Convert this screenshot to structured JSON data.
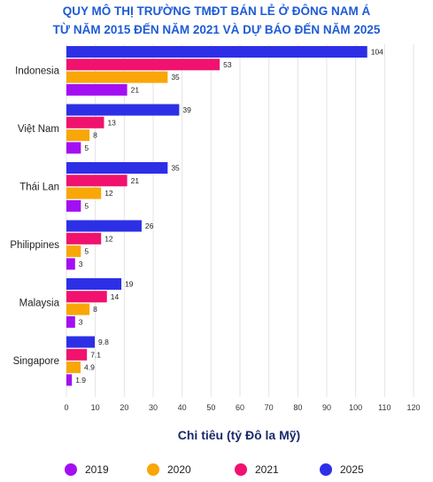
{
  "chart_data": {
    "type": "bar",
    "orientation": "horizontal",
    "title_lines": [
      "QUY MÔ THỊ TRƯỜNG TMĐT BÁN LẺ Ở ĐÔNG NAM Á",
      "TỪ NĂM 2015 ĐẾN NĂM 2021 VÀ DỰ BÁO ĐẾN NĂM 2025"
    ],
    "xlabel": "Chi tiêu (tỷ Đô la Mỹ)",
    "ylabel": "",
    "xlim": [
      0,
      120
    ],
    "x_ticks": [
      0,
      10,
      20,
      30,
      40,
      50,
      60,
      70,
      80,
      90,
      100,
      110,
      120
    ],
    "grid": true,
    "legend_position": "bottom",
    "categories": [
      "Indonesia",
      "Việt Nam",
      "Thái Lan",
      "Philippines",
      "Malaysia",
      "Singapore"
    ],
    "series": [
      {
        "name": "2025",
        "color": "#2d2fe6",
        "values": [
          104,
          39,
          35,
          26,
          19,
          9.8
        ],
        "labels": [
          "104",
          "39",
          "35",
          "26",
          "19",
          "9.8"
        ]
      },
      {
        "name": "2021",
        "color": "#f0126e",
        "values": [
          53,
          13,
          21,
          12,
          14,
          7.1
        ],
        "labels": [
          "53",
          "13",
          "21",
          "12",
          "14",
          "7.1"
        ]
      },
      {
        "name": "2020",
        "color": "#f9a607",
        "values": [
          35,
          8,
          12,
          5,
          8,
          4.9
        ],
        "labels": [
          "35",
          "8",
          "12",
          "5",
          "8",
          "4.9"
        ]
      },
      {
        "name": "2019",
        "color": "#a30ff2",
        "values": [
          21,
          5,
          5,
          3,
          3,
          1.9
        ],
        "labels": [
          "21",
          "5",
          "5",
          "3",
          "3",
          "1.9"
        ]
      }
    ],
    "legend_order": [
      "2019",
      "2020",
      "2021",
      "2025"
    ]
  }
}
